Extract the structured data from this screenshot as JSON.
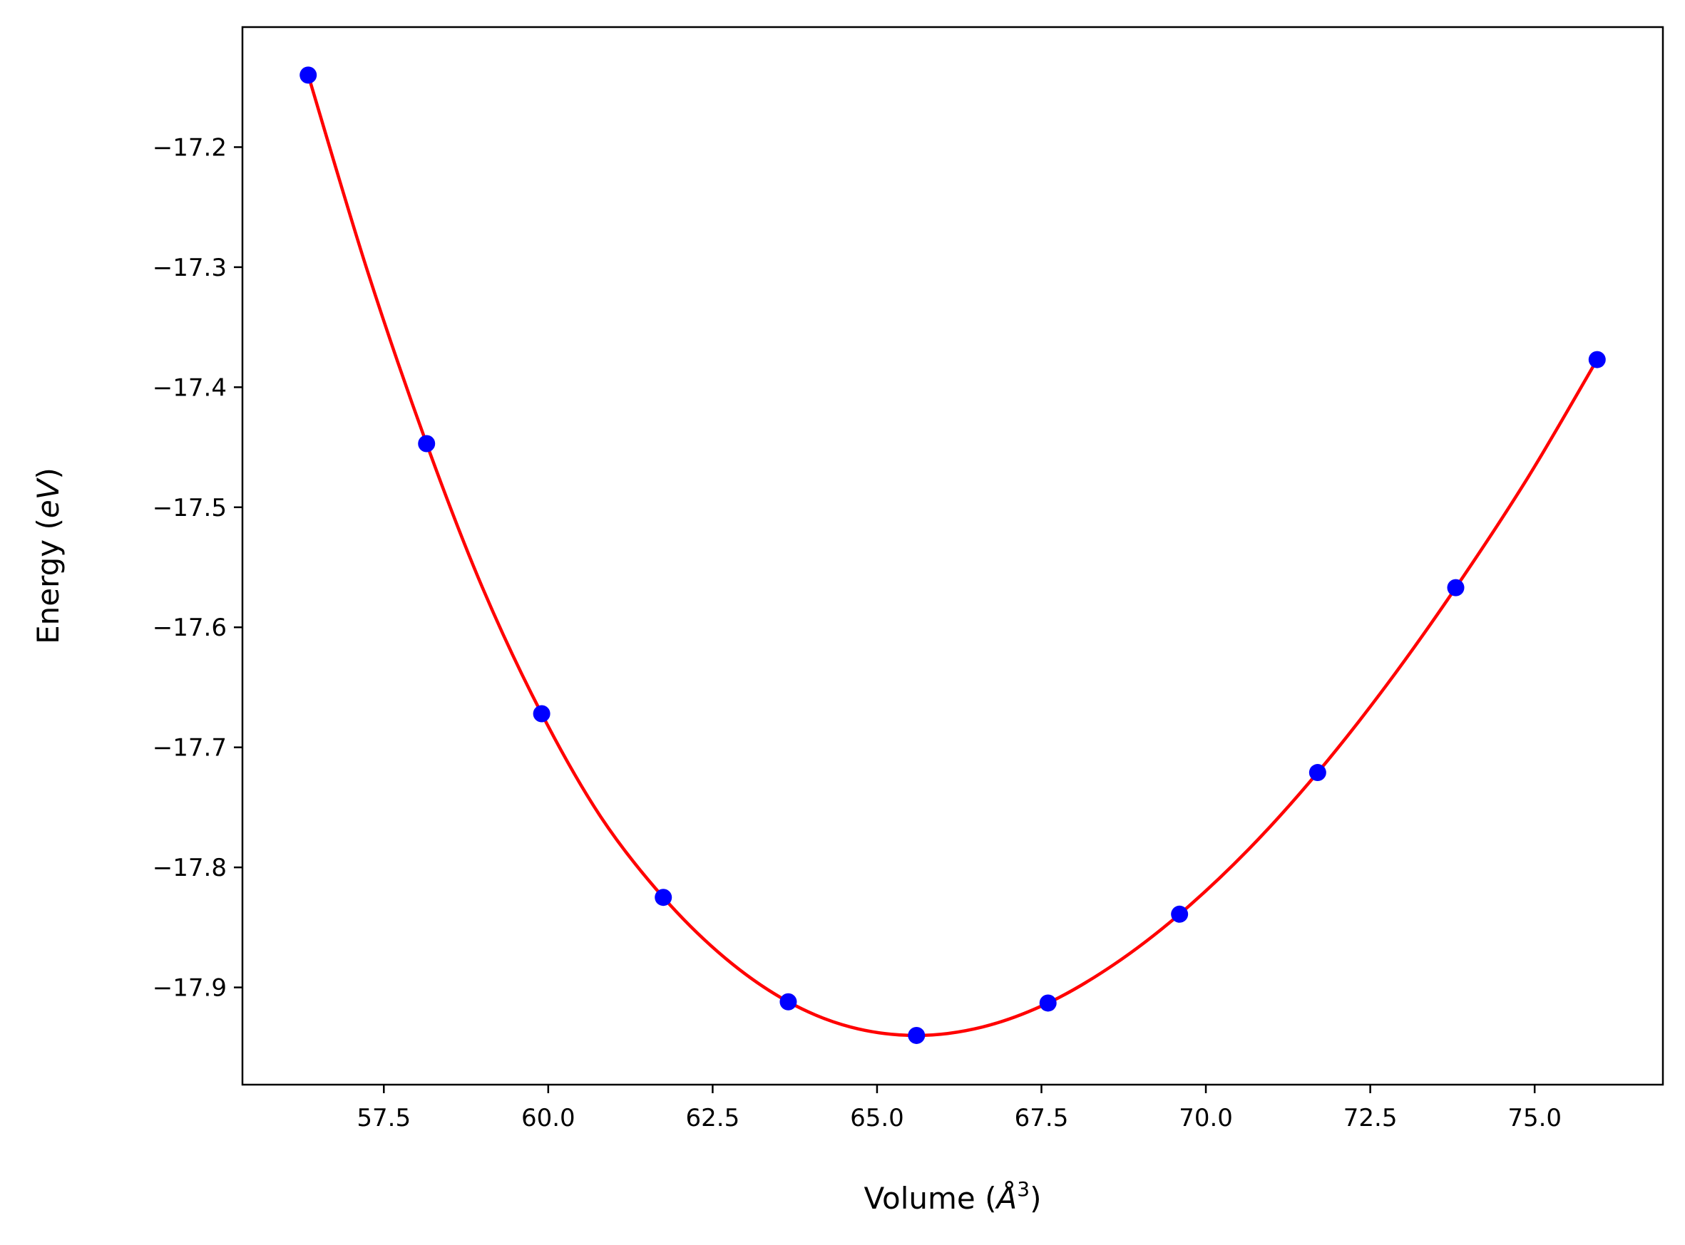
{
  "chart_data": {
    "type": "line",
    "xlabel": "Volume (Å³)",
    "xlabel_parts": {
      "prefix": "Volume (",
      "symbol": "Å",
      "superscript": "3",
      "suffix": ")"
    },
    "ylabel": "Energy (eV)",
    "ylabel_parts": {
      "prefix": "Energy (",
      "symbol": "eV",
      "suffix": ")"
    },
    "xlim": [
      55.35,
      76.95
    ],
    "ylim": [
      -17.981,
      -17.1
    ],
    "xticks": [
      57.5,
      60.0,
      62.5,
      65.0,
      67.5,
      70.0,
      72.5,
      75.0
    ],
    "xtick_labels": [
      "57.5",
      "60.0",
      "62.5",
      "65.0",
      "67.5",
      "70.0",
      "72.5",
      "75.0"
    ],
    "yticks": [
      -17.2,
      -17.3,
      -17.4,
      -17.5,
      -17.6,
      -17.7,
      -17.8,
      -17.9
    ],
    "ytick_labels": [
      "−17.2",
      "−17.3",
      "−17.4",
      "−17.5",
      "−17.6",
      "−17.7",
      "−17.8",
      "−17.9"
    ],
    "grid": false,
    "legend": "none",
    "series": [
      {
        "kind": "scatter",
        "color": "#0000ff",
        "x": [
          56.35,
          58.15,
          59.9,
          61.75,
          63.65,
          65.6,
          67.6,
          69.6,
          71.7,
          73.8,
          75.95
        ],
        "y": [
          -17.14,
          -17.447,
          -17.672,
          -17.825,
          -17.912,
          -17.94,
          -17.913,
          -17.839,
          -17.721,
          -17.567,
          -17.377
        ]
      },
      {
        "kind": "fit-curve",
        "color": "#ff0000",
        "x": [
          56.35,
          57.25,
          58.15,
          59.0,
          59.9,
          60.8,
          61.75,
          62.7,
          63.65,
          64.6,
          65.6,
          66.6,
          67.6,
          68.6,
          69.6,
          70.65,
          71.7,
          72.75,
          73.8,
          74.9,
          75.95
        ],
        "y": [
          -17.14,
          -17.303,
          -17.447,
          -17.567,
          -17.672,
          -17.758,
          -17.825,
          -17.876,
          -17.912,
          -17.933,
          -17.94,
          -17.933,
          -17.913,
          -17.881,
          -17.839,
          -17.785,
          -17.721,
          -17.648,
          -17.567,
          -17.475,
          -17.377
        ]
      }
    ]
  }
}
